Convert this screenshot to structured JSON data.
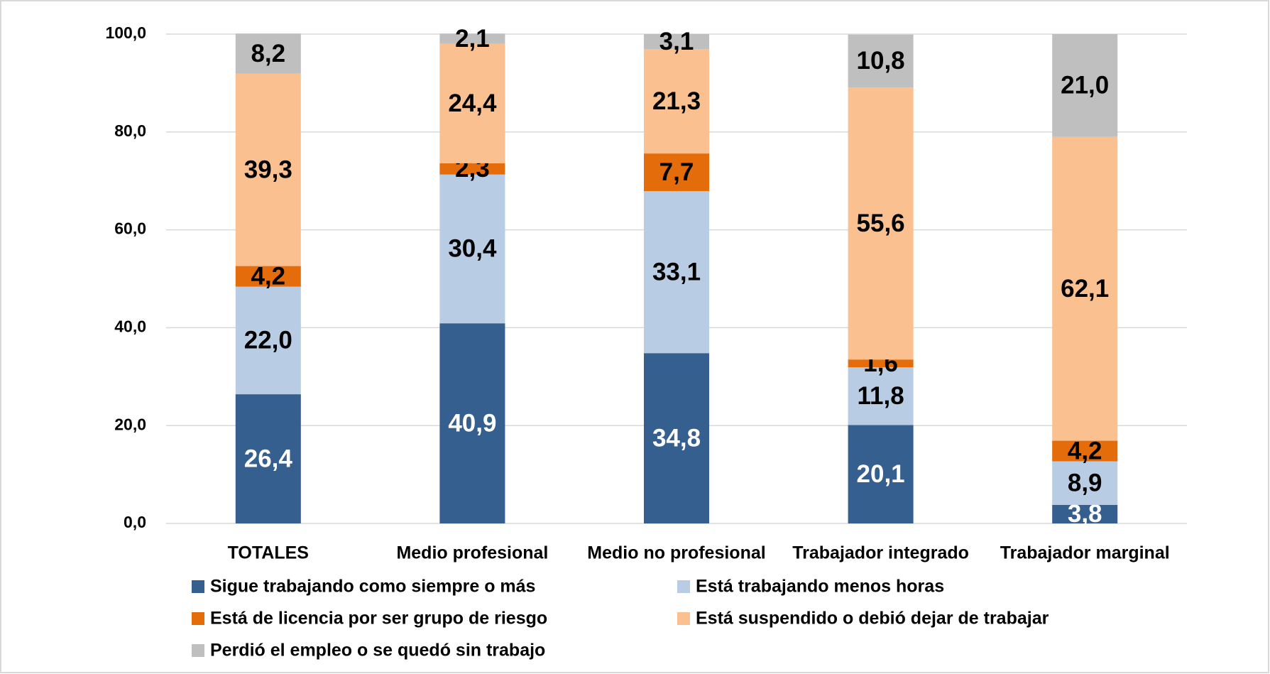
{
  "chart_data": {
    "type": "stacked_bar",
    "categories": [
      "TOTALES",
      "Medio profesional",
      "Medio no profesional",
      "Trabajador integrado",
      "Trabajador marginal"
    ],
    "series": [
      {
        "name": "Sigue trabajando como siempre o más",
        "color": "#355f8f",
        "values": [
          26.4,
          40.9,
          34.8,
          20.1,
          3.8
        ],
        "value_labels": [
          "26,4",
          "40,9",
          "34,8",
          "20,1",
          "3,8"
        ]
      },
      {
        "name": "Está trabajando menos horas",
        "color": "#b8cce4",
        "values": [
          22.0,
          30.4,
          33.1,
          11.8,
          8.9
        ],
        "value_labels": [
          "22,0",
          "30,4",
          "33,1",
          "11,8",
          "8,9"
        ]
      },
      {
        "name": "Está de licencia por ser grupo de riesgo",
        "color": "#e46c0a",
        "values": [
          4.2,
          2.3,
          7.7,
          1.6,
          4.2
        ],
        "value_labels": [
          "4,2",
          "2,3",
          "7,7",
          "1,6",
          "4,2"
        ]
      },
      {
        "name": "Está suspendido o debió dejar de trabajar",
        "color": "#fac090",
        "values": [
          39.3,
          24.4,
          21.3,
          55.6,
          62.1
        ],
        "value_labels": [
          "39,3",
          "24,4",
          "21,3",
          "55,6",
          "62,1"
        ]
      },
      {
        "name": "Perdió el empleo o se quedó sin trabajo",
        "color": "#bfbfbf",
        "values": [
          8.2,
          2.1,
          3.1,
          10.8,
          21.0
        ],
        "value_labels": [
          "8,2",
          "2,1",
          "3,1",
          "10,8",
          "21,0"
        ]
      }
    ],
    "ylim": [
      0,
      100
    ],
    "yticks": [
      {
        "value": 0,
        "label": "0,0"
      },
      {
        "value": 20,
        "label": "20,0"
      },
      {
        "value": 40,
        "label": "40,0"
      },
      {
        "value": 60,
        "label": "60,0"
      },
      {
        "value": 80,
        "label": "80,0"
      },
      {
        "value": 100,
        "label": "100,0"
      }
    ],
    "grid": true,
    "legend": "bottom"
  }
}
